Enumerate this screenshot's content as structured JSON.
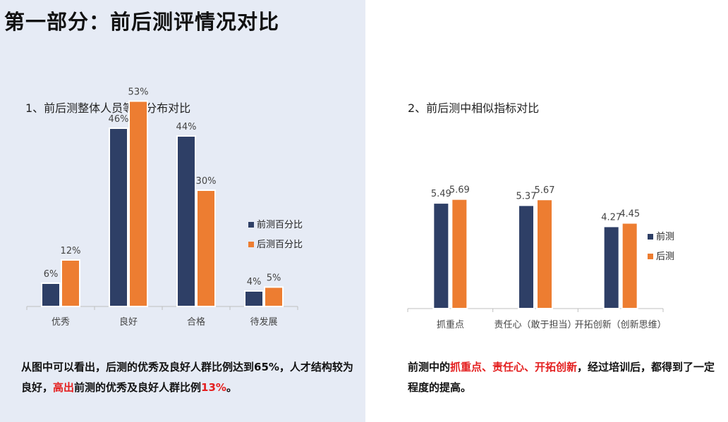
{
  "title": "第一部分：前后测评情况对比",
  "colors": {
    "pre": "#2e3f66",
    "post": "#ed7d31",
    "highlight": "#e41f1f",
    "axis": "#bfbfbf"
  },
  "chart_data": [
    {
      "type": "bar",
      "title": "1、前后测整体人员等级分布对比",
      "categories": [
        "优秀",
        "良好",
        "合格",
        "待发展"
      ],
      "series": [
        {
          "name": "前测百分比",
          "values": [
            6,
            46,
            44,
            4
          ],
          "labels": [
            "6%",
            "46%",
            "44%",
            "4%"
          ]
        },
        {
          "name": "后测百分比",
          "values": [
            12,
            53,
            30,
            5
          ],
          "labels": [
            "12%",
            "53%",
            "30%",
            "5%"
          ]
        }
      ],
      "ylim": [
        0,
        60
      ],
      "grid": false,
      "legend": "right"
    },
    {
      "type": "bar",
      "title": "2、前后测中相似指标对比",
      "categories": [
        "抓重点",
        "责任心（敢于担当）",
        "开拓创新（创新思维）"
      ],
      "series": [
        {
          "name": "前测",
          "values": [
            5.49,
            5.37,
            4.27
          ],
          "labels": [
            "5.49",
            "5.37",
            "4.27"
          ]
        },
        {
          "name": "后测",
          "values": [
            5.69,
            5.67,
            4.45
          ],
          "labels": [
            "5.69",
            "5.67",
            "4.45"
          ]
        }
      ],
      "ylim": [
        0,
        6.3
      ],
      "grid": false,
      "legend": "right"
    }
  ],
  "summary_left": {
    "part1": "从图中可以看出，后测的优秀及良好人群比例达到65%，人才结构较为良好，",
    "highlight1": "高出",
    "part2": "前测的优秀及良好人群比例",
    "highlight2": "13%",
    "part3": "。"
  },
  "summary_right": {
    "part1": "前测中的",
    "highlight1": "抓重点、责任心、开拓创新",
    "part2": "，经过培训后，都得到了一定程度的提高。"
  }
}
